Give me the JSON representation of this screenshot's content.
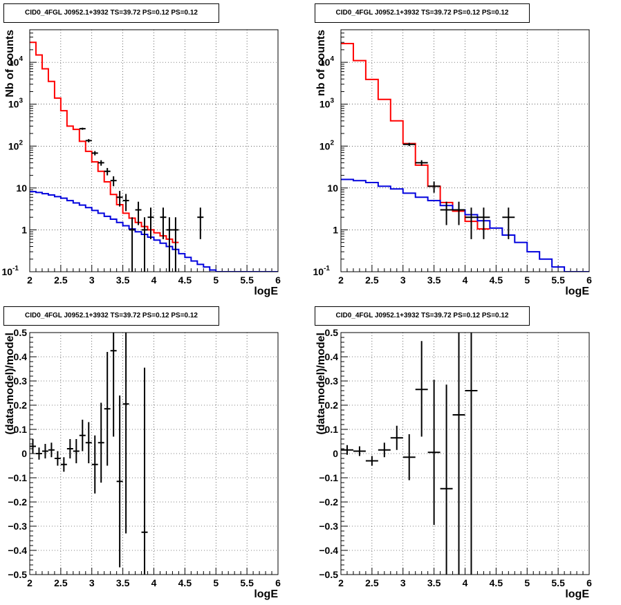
{
  "chart_data": [
    {
      "type": "line",
      "title": "CID0_4FGL J0952.1+3932 TS=39.72 PS=0.12 PS=0.12",
      "xlabel": "logE",
      "ylabel": "Nb of counts",
      "xlim": [
        2,
        6
      ],
      "ylim": [
        0.1,
        60000
      ],
      "ylog": true,
      "grid": true,
      "xticks": [
        "2",
        "2.5",
        "3",
        "3.5",
        "4",
        "4.5",
        "5",
        "5.5",
        "6"
      ],
      "yticks": [
        {
          "v": 0.1,
          "label": "10",
          "exp": "-1"
        },
        {
          "v": 1,
          "label": "1",
          "exp": ""
        },
        {
          "v": 10,
          "label": "10",
          "exp": ""
        },
        {
          "v": 100,
          "label": "10",
          "exp": "2"
        },
        {
          "v": 1000,
          "label": "10",
          "exp": "3"
        },
        {
          "v": 10000,
          "label": "10",
          "exp": "4"
        }
      ],
      "series": [
        {
          "kind": "hist",
          "color": "#ff0000",
          "edges": [
            2,
            2.1,
            2.2,
            2.3,
            2.4,
            2.5,
            2.6,
            2.7,
            2.8,
            2.9,
            3.0,
            3.1,
            3.2,
            3.3,
            3.4,
            3.5,
            3.6,
            3.7,
            3.8,
            3.9,
            4.0,
            4.1,
            4.2,
            4.3,
            4.4
          ],
          "values": [
            30000,
            15000,
            7000,
            3500,
            1400,
            700,
            300,
            250,
            130,
            75,
            42,
            25,
            14,
            7,
            4,
            2.5,
            1.9,
            1.5,
            1.2,
            1.0,
            0.85,
            0.72,
            0.6,
            0.5
          ]
        },
        {
          "kind": "hist",
          "color": "#0000dd",
          "edges": [
            2,
            2.1,
            2.2,
            2.3,
            2.4,
            2.5,
            2.6,
            2.7,
            2.8,
            2.9,
            3.0,
            3.1,
            3.2,
            3.3,
            3.4,
            3.5,
            3.6,
            3.7,
            3.8,
            3.9,
            4.0,
            4.1,
            4.2,
            4.3,
            4.4,
            4.5,
            4.6,
            4.7,
            4.8,
            4.9,
            5.0,
            5.1,
            5.2,
            6.0
          ],
          "values": [
            8.2,
            7.8,
            7.3,
            6.8,
            6.2,
            5.7,
            5.0,
            4.4,
            3.9,
            3.4,
            2.9,
            2.5,
            2.1,
            1.8,
            1.5,
            1.25,
            1.05,
            0.9,
            0.78,
            0.67,
            0.57,
            0.48,
            0.4,
            0.34,
            0.27,
            0.22,
            0.18,
            0.15,
            0.13,
            0.11,
            0.1,
            0.1,
            0.1
          ]
        },
        {
          "kind": "points",
          "color": "#000000",
          "points": [
            {
              "x": 2.85,
              "y": 260,
              "lo": 245,
              "hi": 275,
              "xe": 0.05
            },
            {
              "x": 2.95,
              "y": 135,
              "lo": 123,
              "hi": 147,
              "xe": 0.05
            },
            {
              "x": 3.05,
              "y": 68,
              "lo": 60,
              "hi": 76,
              "xe": 0.05
            },
            {
              "x": 3.15,
              "y": 40,
              "lo": 34,
              "hi": 46,
              "xe": 0.05
            },
            {
              "x": 3.25,
              "y": 25,
              "lo": 20,
              "hi": 30,
              "xe": 0.05
            },
            {
              "x": 3.35,
              "y": 15,
              "lo": 11,
              "hi": 19,
              "xe": 0.05
            },
            {
              "x": 3.45,
              "y": 6,
              "lo": 3.6,
              "hi": 8.5,
              "xe": 0.05
            },
            {
              "x": 3.55,
              "y": 5,
              "lo": 2.8,
              "hi": 7.2,
              "xe": 0.05
            },
            {
              "x": 3.65,
              "y": 1,
              "lo": 0.1,
              "hi": 2.0,
              "xe": 0.05
            },
            {
              "x": 3.75,
              "y": 3,
              "lo": 1.3,
              "hi": 4.7,
              "xe": 0.05
            },
            {
              "x": 3.85,
              "y": 1,
              "lo": 0.1,
              "hi": 2.0,
              "xe": 0.05
            },
            {
              "x": 3.95,
              "y": 2,
              "lo": 0.6,
              "hi": 3.4,
              "xe": 0.05
            },
            {
              "x": 4.15,
              "y": 2,
              "lo": 0.6,
              "hi": 3.4,
              "xe": 0.05
            },
            {
              "x": 4.25,
              "y": 1,
              "lo": 0.1,
              "hi": 2.0,
              "xe": 0.05
            },
            {
              "x": 4.35,
              "y": 1,
              "lo": 0.1,
              "hi": 2.0,
              "xe": 0.05
            },
            {
              "x": 4.75,
              "y": 2,
              "lo": 0.6,
              "hi": 3.4,
              "xe": 0.05
            }
          ]
        }
      ]
    },
    {
      "type": "line",
      "title": "CID0_4FGL J0952.1+3932 TS=39.72 PS=0.12 PS=0.12",
      "xlabel": "logE",
      "ylabel": "nb of counts",
      "xlim": [
        2,
        6
      ],
      "ylim": [
        0.1,
        60000
      ],
      "ylog": true,
      "grid": true,
      "xticks": [
        "2",
        "2.5",
        "3",
        "3.5",
        "4",
        "4.5",
        "5",
        "5.5",
        "6"
      ],
      "yticks": [
        {
          "v": 0.1,
          "label": "10",
          "exp": "-1"
        },
        {
          "v": 1,
          "label": "1",
          "exp": ""
        },
        {
          "v": 10,
          "label": "10",
          "exp": ""
        },
        {
          "v": 100,
          "label": "10",
          "exp": "2"
        },
        {
          "v": 1000,
          "label": "10",
          "exp": "3"
        },
        {
          "v": 10000,
          "label": "10",
          "exp": "4"
        }
      ],
      "series": [
        {
          "kind": "hist",
          "color": "#ff0000",
          "edges": [
            2,
            2.2,
            2.4,
            2.6,
            2.8,
            3.0,
            3.2,
            3.4,
            3.6,
            3.8,
            4.0,
            4.2,
            4.4
          ],
          "values": [
            28000,
            11000,
            3900,
            1300,
            400,
            115,
            35,
            11,
            4.5,
            2.8,
            1.6,
            1.05
          ]
        },
        {
          "kind": "hist",
          "color": "#0000dd",
          "edges": [
            2,
            2.2,
            2.4,
            2.6,
            2.8,
            3.0,
            3.2,
            3.4,
            3.6,
            3.8,
            4.0,
            4.2,
            4.4,
            4.6,
            4.8,
            5.0,
            5.2,
            5.4,
            5.6,
            6.0
          ],
          "values": [
            16,
            15,
            13.5,
            11,
            9.5,
            7.5,
            6,
            5,
            3.8,
            3.0,
            2.3,
            1.65,
            1.1,
            0.75,
            0.5,
            0.3,
            0.2,
            0.13,
            0.1
          ]
        },
        {
          "kind": "points",
          "color": "#000000",
          "points": [
            {
              "x": 3.1,
              "y": 110,
              "lo": 100,
              "hi": 120,
              "xe": 0.1
            },
            {
              "x": 3.3,
              "y": 40,
              "lo": 34,
              "hi": 46,
              "xe": 0.1
            },
            {
              "x": 3.5,
              "y": 11,
              "lo": 7.7,
              "hi": 14.3,
              "xe": 0.1
            },
            {
              "x": 3.7,
              "y": 3,
              "lo": 1.3,
              "hi": 4.7,
              "xe": 0.1
            },
            {
              "x": 3.9,
              "y": 3,
              "lo": 1.3,
              "hi": 4.7,
              "xe": 0.1
            },
            {
              "x": 4.1,
              "y": 2,
              "lo": 0.6,
              "hi": 3.4,
              "xe": 0.1
            },
            {
              "x": 4.3,
              "y": 2,
              "lo": 0.6,
              "hi": 3.4,
              "xe": 0.1
            },
            {
              "x": 4.7,
              "y": 2,
              "lo": 0.6,
              "hi": 3.4,
              "xe": 0.1
            }
          ]
        }
      ]
    },
    {
      "type": "scatter",
      "title": "CID0_4FGL J0952.1+3932 TS=39.72 PS=0.12 PS=0.12",
      "xlabel": "logE",
      "ylabel": "(data-model)/model",
      "xlim": [
        2,
        6
      ],
      "ylim": [
        -0.5,
        0.5
      ],
      "ylog": false,
      "grid": true,
      "xticks": [
        "2",
        "2.5",
        "3",
        "3.5",
        "4",
        "4.5",
        "5",
        "5.5",
        "6"
      ],
      "yticks": [
        {
          "v": -0.5,
          "label": "−0.5"
        },
        {
          "v": -0.4,
          "label": "−0.4"
        },
        {
          "v": -0.3,
          "label": "−0.3"
        },
        {
          "v": -0.2,
          "label": "−0.2"
        },
        {
          "v": -0.1,
          "label": "−0.1"
        },
        {
          "v": 0,
          "label": "0"
        },
        {
          "v": 0.1,
          "label": "0.1"
        },
        {
          "v": 0.2,
          "label": "0.2"
        },
        {
          "v": 0.3,
          "label": "0.3"
        },
        {
          "v": 0.4,
          "label": "0.4"
        },
        {
          "v": 0.5,
          "label": "0.5"
        }
      ],
      "series": [
        {
          "kind": "points",
          "color": "#000000",
          "points": [
            {
              "x": 2.05,
              "y": 0.03,
              "lo": 0.0,
              "hi": 0.06,
              "xe": 0.05
            },
            {
              "x": 2.15,
              "y": 0.0,
              "lo": -0.025,
              "hi": 0.025,
              "xe": 0.05
            },
            {
              "x": 2.25,
              "y": 0.01,
              "lo": -0.02,
              "hi": 0.04,
              "xe": 0.05
            },
            {
              "x": 2.35,
              "y": 0.015,
              "lo": -0.015,
              "hi": 0.045,
              "xe": 0.05
            },
            {
              "x": 2.45,
              "y": -0.02,
              "lo": -0.05,
              "hi": 0.01,
              "xe": 0.05
            },
            {
              "x": 2.55,
              "y": -0.045,
              "lo": -0.075,
              "hi": -0.015,
              "xe": 0.05
            },
            {
              "x": 2.65,
              "y": 0.02,
              "lo": -0.02,
              "hi": 0.06,
              "xe": 0.05
            },
            {
              "x": 2.75,
              "y": 0.01,
              "lo": -0.04,
              "hi": 0.06,
              "xe": 0.05
            },
            {
              "x": 2.85,
              "y": 0.075,
              "lo": 0.01,
              "hi": 0.14,
              "xe": 0.05
            },
            {
              "x": 2.95,
              "y": 0.045,
              "lo": -0.04,
              "hi": 0.13,
              "xe": 0.05
            },
            {
              "x": 3.05,
              "y": -0.045,
              "lo": -0.165,
              "hi": 0.075,
              "xe": 0.05
            },
            {
              "x": 3.15,
              "y": 0.045,
              "lo": -0.12,
              "hi": 0.21,
              "xe": 0.05
            },
            {
              "x": 3.25,
              "y": 0.185,
              "lo": -0.05,
              "hi": 0.42,
              "xe": 0.05
            },
            {
              "x": 3.35,
              "y": 0.425,
              "lo": 0.07,
              "hi": 0.5,
              "xe": 0.05
            },
            {
              "x": 3.45,
              "y": -0.115,
              "lo": -0.47,
              "hi": 0.24,
              "xe": 0.05
            },
            {
              "x": 3.55,
              "y": 0.205,
              "lo": -0.33,
              "hi": 0.5,
              "xe": 0.05
            },
            {
              "x": 3.85,
              "y": -0.325,
              "lo": -0.5,
              "hi": 0.355,
              "xe": 0.05
            }
          ]
        }
      ]
    },
    {
      "type": "scatter",
      "title": "CID0_4FGL J0952.1+3932 TS=39.72 PS=0.12 PS=0.12",
      "xlabel": "logE",
      "ylabel": "(data-model)/model",
      "xlim": [
        2,
        6
      ],
      "ylim": [
        -0.5,
        0.5
      ],
      "ylog": false,
      "grid": true,
      "xticks": [
        "2",
        "2.5",
        "3",
        "3.5",
        "4",
        "4.5",
        "5",
        "5.5",
        "6"
      ],
      "yticks": [
        {
          "v": -0.5,
          "label": "−0.5"
        },
        {
          "v": -0.4,
          "label": "−0.4"
        },
        {
          "v": -0.3,
          "label": "−0.3"
        },
        {
          "v": -0.2,
          "label": "−0.2"
        },
        {
          "v": -0.1,
          "label": "−0.1"
        },
        {
          "v": 0,
          "label": "0"
        },
        {
          "v": 0.1,
          "label": "0.1"
        },
        {
          "v": 0.2,
          "label": "0.2"
        },
        {
          "v": 0.3,
          "label": "0.3"
        },
        {
          "v": 0.4,
          "label": "0.4"
        },
        {
          "v": 0.5,
          "label": "0.5"
        }
      ],
      "series": [
        {
          "kind": "points",
          "color": "#000000",
          "points": [
            {
              "x": 2.1,
              "y": 0.015,
              "lo": -0.005,
              "hi": 0.035,
              "xe": 0.1
            },
            {
              "x": 2.3,
              "y": 0.01,
              "lo": -0.01,
              "hi": 0.03,
              "xe": 0.1
            },
            {
              "x": 2.5,
              "y": -0.03,
              "lo": -0.05,
              "hi": -0.01,
              "xe": 0.1
            },
            {
              "x": 2.7,
              "y": 0.015,
              "lo": -0.015,
              "hi": 0.045,
              "xe": 0.1
            },
            {
              "x": 2.9,
              "y": 0.065,
              "lo": 0.015,
              "hi": 0.115,
              "xe": 0.1
            },
            {
              "x": 3.1,
              "y": -0.015,
              "lo": -0.11,
              "hi": 0.08,
              "xe": 0.1
            },
            {
              "x": 3.3,
              "y": 0.265,
              "lo": 0.07,
              "hi": 0.465,
              "xe": 0.1
            },
            {
              "x": 3.5,
              "y": 0.005,
              "lo": -0.295,
              "hi": 0.305,
              "xe": 0.1
            },
            {
              "x": 3.7,
              "y": -0.145,
              "lo": -0.5,
              "hi": 0.285,
              "xe": 0.1
            },
            {
              "x": 3.9,
              "y": 0.16,
              "lo": -0.5,
              "hi": 0.5,
              "xe": 0.1
            },
            {
              "x": 4.1,
              "y": 0.26,
              "lo": -0.5,
              "hi": 0.5,
              "xe": 0.1
            }
          ]
        }
      ]
    }
  ]
}
